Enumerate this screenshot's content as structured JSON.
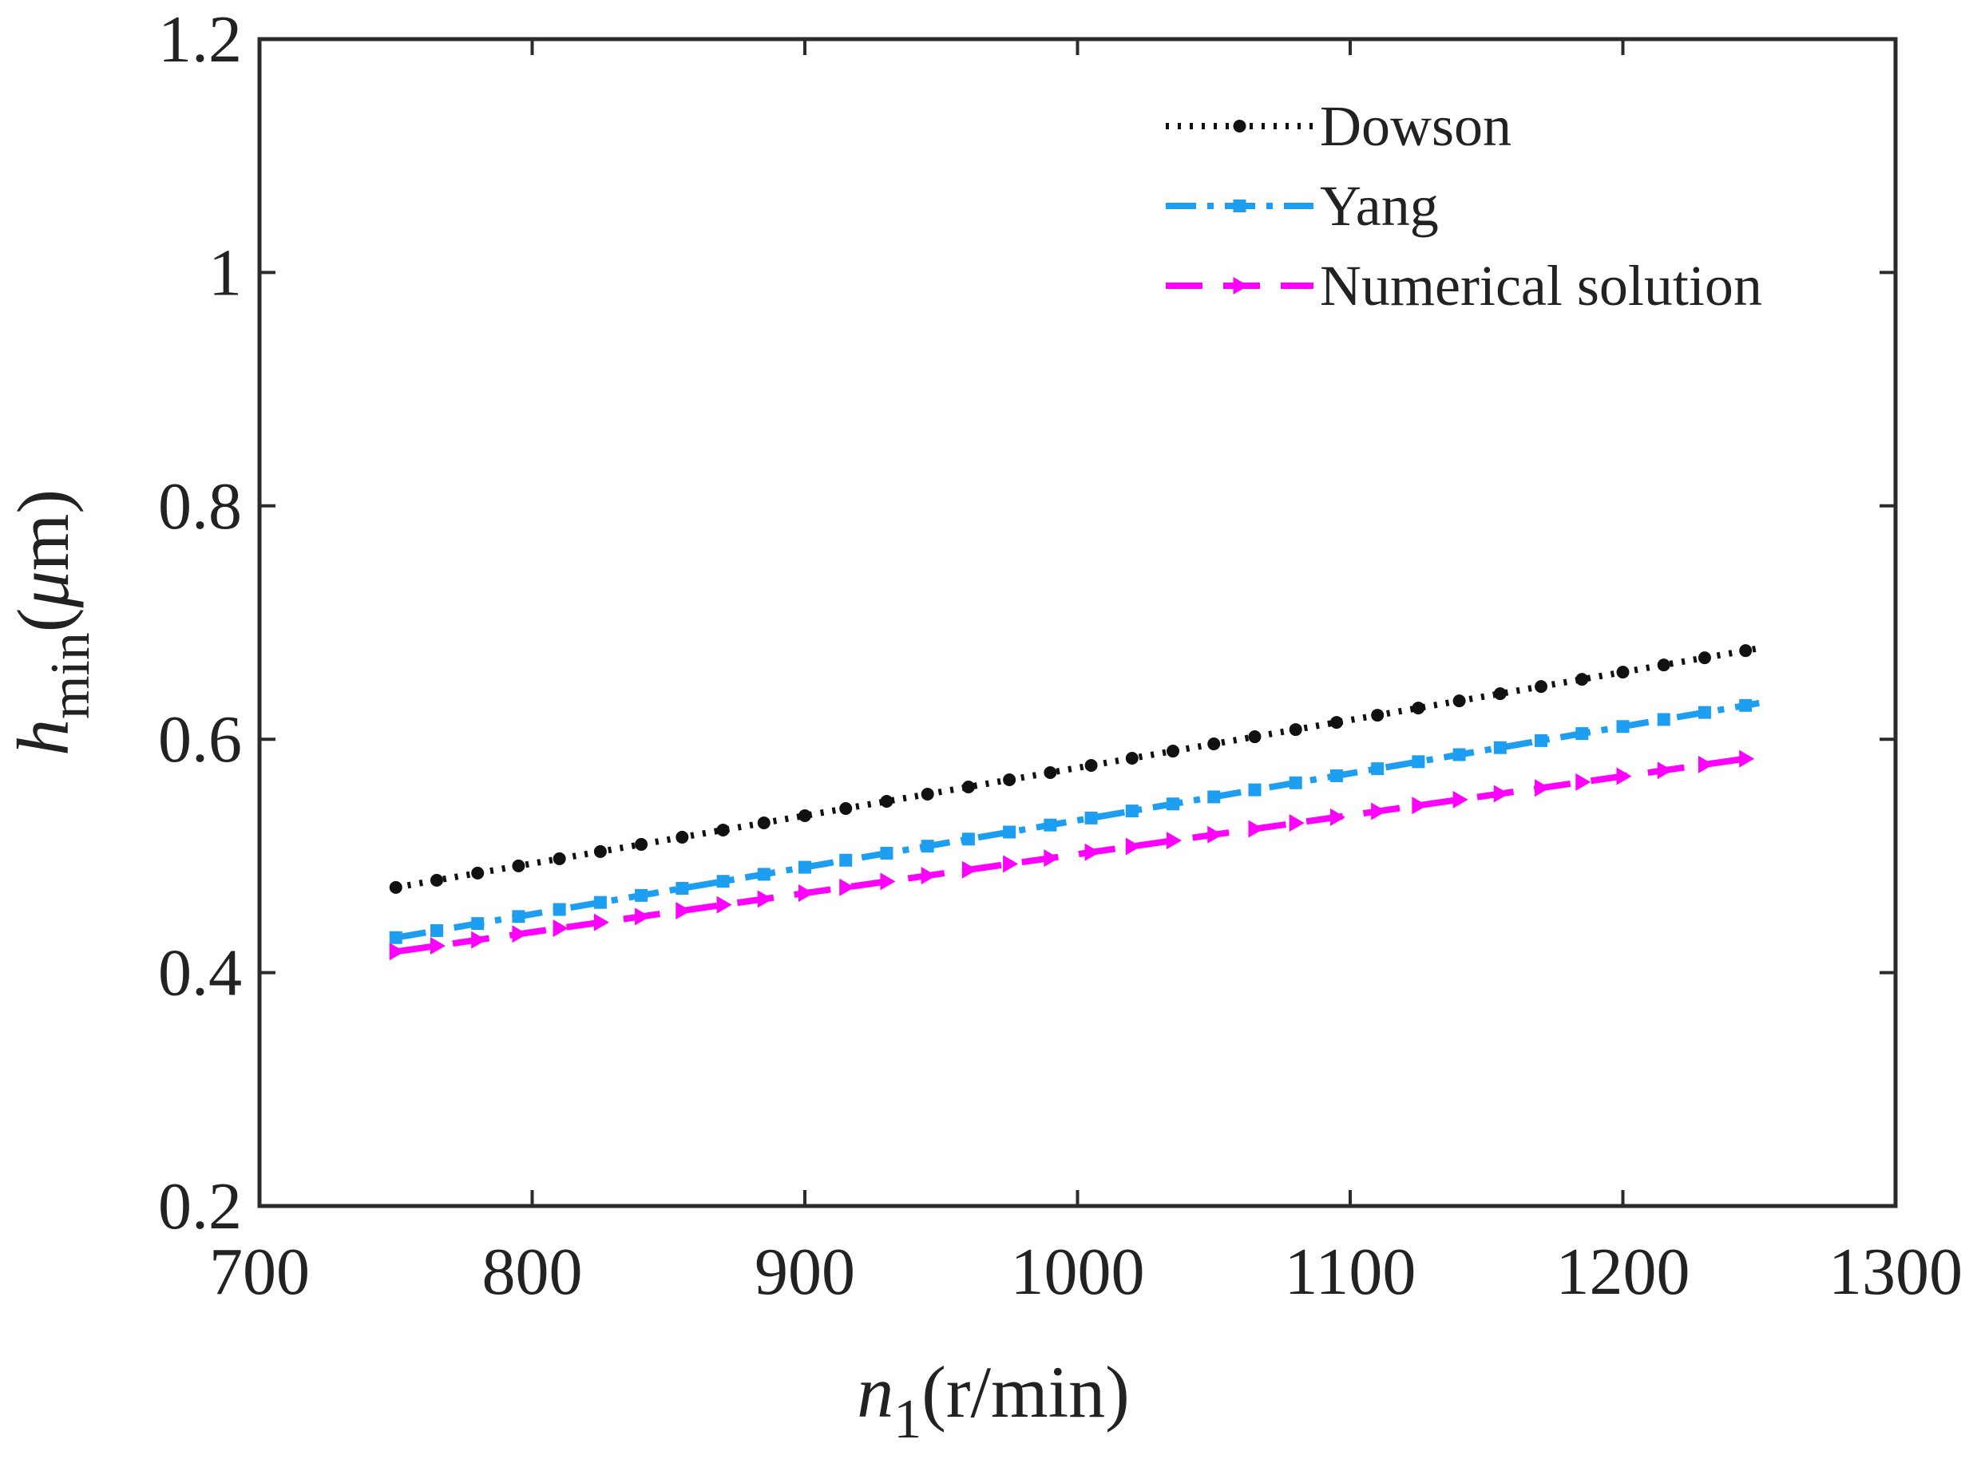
{
  "chart_data": {
    "type": "line",
    "title": "",
    "xlabel": {
      "main": "n",
      "sub": "1",
      "unit": "(r/min)"
    },
    "ylabel": {
      "main": "h",
      "sub": "min",
      "unit_open": "(",
      "unit_mu": "μ",
      "unit_rest": "m)"
    },
    "xlim": [
      700,
      1300
    ],
    "ylim": [
      0.2,
      1.2
    ],
    "xticks": [
      700,
      800,
      900,
      1000,
      1100,
      1200,
      1300
    ],
    "yticks": [
      0.2,
      0.4,
      0.6,
      0.8,
      1,
      1.2
    ],
    "xtick_labels": [
      "700",
      "800",
      "900",
      "1000",
      "1100",
      "1200",
      "1300"
    ],
    "ytick_labels": [
      "0.2",
      "0.4",
      "0.6",
      "0.8",
      "1",
      "1.2"
    ],
    "grid": false,
    "legend_position": "top-right",
    "x_range": [
      750,
      1250
    ],
    "marker_step": 15,
    "series": [
      {
        "name": "Dowson",
        "color": "#111111",
        "line_style": "dotted",
        "marker": "dot",
        "start_value": 0.473,
        "end_value": 0.678
      },
      {
        "name": "Yang",
        "color": "#1e9ef0",
        "line_style": "dashdot",
        "marker": "square",
        "start_value": 0.43,
        "end_value": 0.631
      },
      {
        "name": "Numerical solution",
        "color": "#ff00ff",
        "line_style": "dashed",
        "marker": "triangle-right",
        "start_value": 0.418,
        "end_value": 0.585
      }
    ]
  }
}
